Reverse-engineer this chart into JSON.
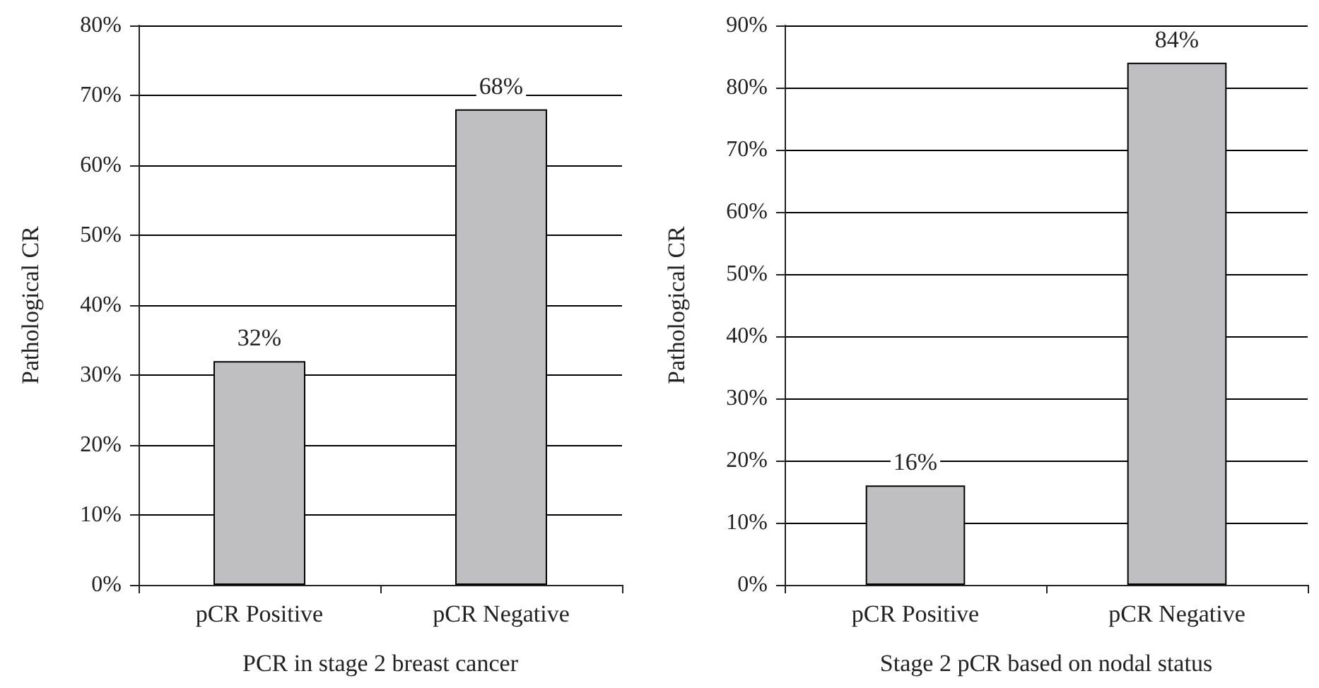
{
  "chart_data": [
    {
      "type": "bar",
      "xlabel": "PCR in stage 2 breast cancer",
      "ylabel": "Pathological CR",
      "categories": [
        "pCR Positive",
        "pCR Negative"
      ],
      "values": [
        32,
        68
      ],
      "value_labels": [
        "32%",
        "68%"
      ],
      "color": "#bfbfc1",
      "ylim": [
        0,
        80
      ],
      "yticks": [
        {
          "value": 0,
          "label": "0%"
        },
        {
          "value": 10,
          "label": "10%"
        },
        {
          "value": 20,
          "label": "20%"
        },
        {
          "value": 30,
          "label": "30%"
        },
        {
          "value": 40,
          "label": "40%"
        },
        {
          "value": 50,
          "label": "50%"
        },
        {
          "value": 60,
          "label": "60%"
        },
        {
          "value": 70,
          "label": "70%"
        },
        {
          "value": 80,
          "label": "80%"
        }
      ],
      "grid": "y"
    },
    {
      "type": "bar",
      "xlabel": "Stage 2 pCR based on nodal status",
      "ylabel": "Pathological CR",
      "categories": [
        "pCR Positive",
        "pCR Negative"
      ],
      "values": [
        16,
        84
      ],
      "value_labels": [
        "16%",
        "84%"
      ],
      "color": "#bfbfc1",
      "ylim": [
        0,
        90
      ],
      "yticks": [
        {
          "value": 0,
          "label": "0%"
        },
        {
          "value": 10,
          "label": "10%"
        },
        {
          "value": 20,
          "label": "20%"
        },
        {
          "value": 30,
          "label": "30%"
        },
        {
          "value": 40,
          "label": "40%"
        },
        {
          "value": 50,
          "label": "50%"
        },
        {
          "value": 60,
          "label": "60%"
        },
        {
          "value": 70,
          "label": "70%"
        },
        {
          "value": 80,
          "label": "80%"
        },
        {
          "value": 90,
          "label": "90%"
        }
      ],
      "grid": "y"
    }
  ]
}
